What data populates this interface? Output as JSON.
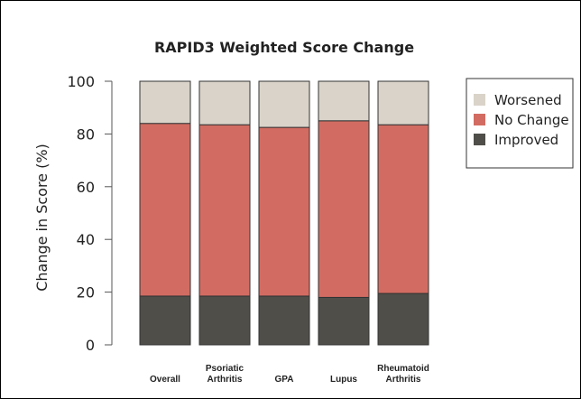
{
  "chart_data": {
    "type": "bar",
    "stacked": true,
    "title": "RAPID3 Weighted Score Change",
    "xlabel": "",
    "ylabel": "Change in Score (%)",
    "ylim": [
      0,
      100
    ],
    "yticks": [
      0,
      20,
      40,
      60,
      80,
      100
    ],
    "categories": [
      [
        "Overall"
      ],
      [
        "Psoriatic",
        "Arthritis"
      ],
      [
        "GPA"
      ],
      [
        "Lupus"
      ],
      [
        "Rheumatoid",
        "Arthritis"
      ]
    ],
    "series": [
      {
        "name": "Improved",
        "color": "#4f4e49",
        "values": [
          18.5,
          18.5,
          18.5,
          18,
          19.5
        ]
      },
      {
        "name": "No Change",
        "color": "#d26c62",
        "values": [
          65.5,
          65,
          64,
          67,
          64
        ]
      },
      {
        "name": "Worsened",
        "color": "#d9d3c9",
        "values": [
          16,
          16.5,
          17.5,
          15,
          16.5
        ]
      }
    ],
    "legend": {
      "position": "right",
      "order": [
        "Worsened",
        "No Change",
        "Improved"
      ]
    },
    "grid": false
  }
}
